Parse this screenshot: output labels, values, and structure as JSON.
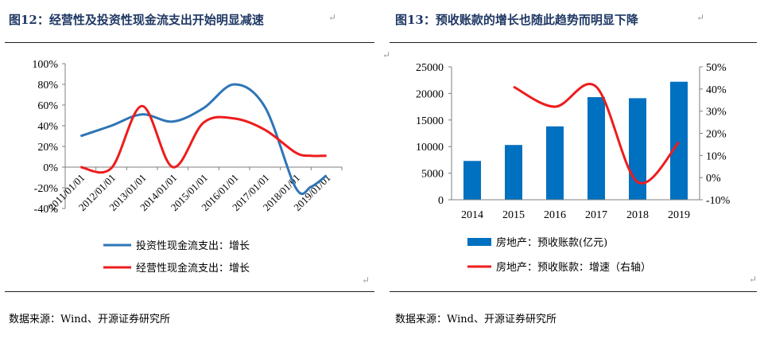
{
  "left": {
    "title": "图12：经营性及投资性现金流支出开始明显减速",
    "source": "数据来源：Wind、开源证券研究所"
  },
  "right": {
    "title": "图13：预收账款的增长也随此趋势而明显下降",
    "source": "数据来源：Wind、开源证券研究所"
  },
  "return_mark": "↵",
  "chart_data": [
    {
      "type": "line",
      "title": "",
      "x": [
        "2011/01/01",
        "2012/01/01",
        "2013/01/01",
        "2014/01/01",
        "2015/01/01",
        "2016/01/01",
        "2017/01/01",
        "2018/01/01",
        "2019/01/01"
      ],
      "ylim": [
        -40,
        100
      ],
      "yticks": [
        "-40%",
        "-20%",
        "0%",
        "20%",
        "40%",
        "60%",
        "80%",
        "100%"
      ],
      "legend_position": "bottom",
      "series": [
        {
          "name": "投资性现金流支出：增长",
          "color": "#2e75b6",
          "points": [
            [
              0,
              30
            ],
            [
              1,
              40
            ],
            [
              2,
              51
            ],
            [
              3,
              44
            ],
            [
              4,
              57
            ],
            [
              5,
              80
            ],
            [
              6,
              58
            ],
            [
              7,
              -20
            ],
            [
              7.5,
              -19
            ],
            [
              8,
              -8
            ]
          ]
        },
        {
          "name": "经营性现金流支出：增长",
          "color": "#ee1c1c",
          "points": [
            [
              0,
              0
            ],
            [
              1,
              -1
            ],
            [
              2,
              59
            ],
            [
              3,
              0
            ],
            [
              4,
              43
            ],
            [
              5,
              47
            ],
            [
              6,
              36
            ],
            [
              7,
              14
            ],
            [
              7.5,
              11
            ],
            [
              8,
              11
            ]
          ]
        }
      ]
    },
    {
      "type": "bar+line",
      "title": "",
      "categories": [
        "2014",
        "2015",
        "2016",
        "2017",
        "2018",
        "2019"
      ],
      "ylim_left": [
        0,
        25000
      ],
      "yticks_left": [
        "0",
        "5000",
        "10000",
        "15000",
        "20000",
        "25000"
      ],
      "ylim_right": [
        -10,
        50
      ],
      "yticks_right": [
        "-10%",
        "0%",
        "10%",
        "20%",
        "30%",
        "40%",
        "50%"
      ],
      "legend_position": "bottom",
      "series": [
        {
          "name": "房地产：预收账款(亿元)",
          "type": "bar",
          "axis": "left",
          "color": "#0070c0",
          "values": [
            7300,
            10300,
            13800,
            19300,
            19100,
            22200
          ]
        },
        {
          "name": "房地产：预收账款：增速（右轴）",
          "type": "line",
          "axis": "right",
          "color": "#ee1c1c",
          "values": [
            null,
            41,
            32,
            41,
            -2,
            16
          ]
        }
      ]
    }
  ]
}
